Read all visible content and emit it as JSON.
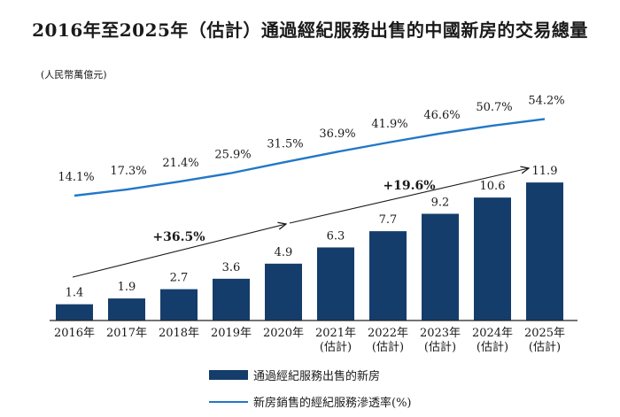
{
  "title": "2016年至2025年（估計）通過經紀服務出售的中國新房的交易總量",
  "unit_label": "(人民幣萬億元)",
  "chart_data": {
    "type": "bar",
    "categories": [
      "2016年",
      "2017年",
      "2018年",
      "2019年",
      "2020年",
      "2021年\n(估計)",
      "2022年\n(估計)",
      "2023年\n(估計)",
      "2024年\n(估計)",
      "2025年\n(估計)"
    ],
    "series": [
      {
        "name": "通過經紀服務出售的新房",
        "type": "bar",
        "values": [
          1.4,
          1.9,
          2.7,
          3.6,
          4.9,
          6.3,
          7.7,
          9.2,
          10.6,
          11.9
        ],
        "labels": [
          "1.4",
          "1.9",
          "2.7",
          "3.6",
          "4.9",
          "6.3",
          "7.7",
          "9.2",
          "10.6",
          "11.9"
        ],
        "color": "#153d6b"
      },
      {
        "name": "新房銷售的經紀服務滲透率(%)",
        "type": "line",
        "values": [
          14.1,
          17.3,
          21.4,
          25.9,
          31.5,
          36.9,
          41.9,
          46.6,
          50.7,
          54.2
        ],
        "labels": [
          "14.1%",
          "17.3%",
          "21.4%",
          "25.9%",
          "31.5%",
          "36.9%",
          "41.9%",
          "46.6%",
          "50.7%",
          "54.2%"
        ],
        "color": "#2277c8"
      }
    ],
    "cagr_annotations": [
      {
        "label": "+36.5%",
        "from_index": 0,
        "to_index": 4
      },
      {
        "label": "+19.6%",
        "from_index": 4,
        "to_index": 9
      }
    ],
    "legend_position": "bottom"
  }
}
